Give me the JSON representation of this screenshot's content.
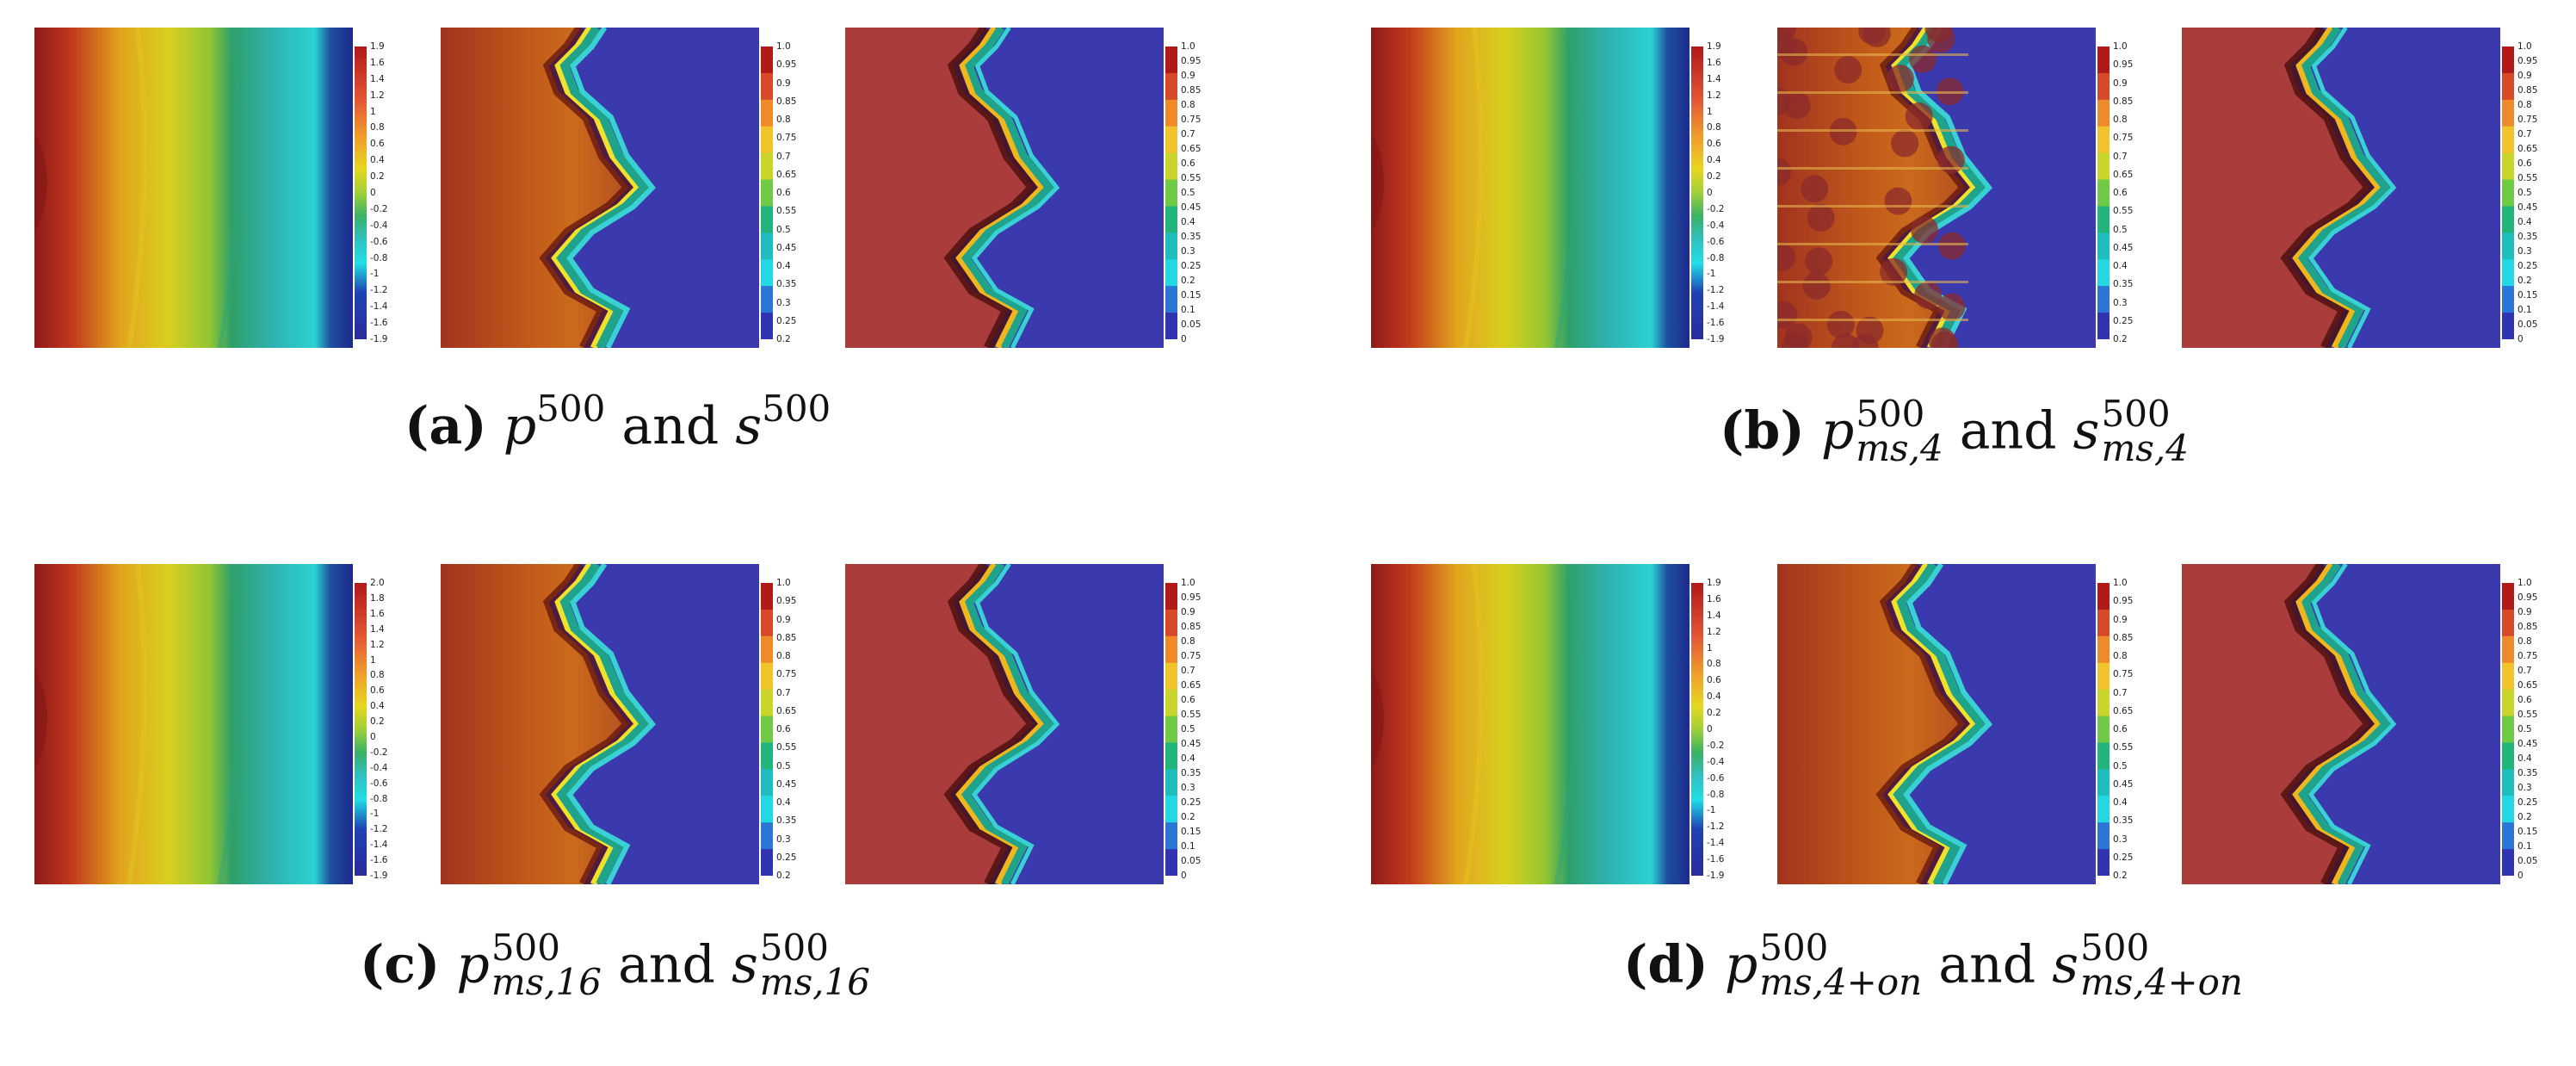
{
  "colors": {
    "pressure_map": [
      "#8f1a1a",
      "#c8451e",
      "#e1a51e",
      "#d9cf1e",
      "#92c633",
      "#2fa06a",
      "#2fb2b2",
      "#2bd2d2",
      "#1d2a8c"
    ],
    "saturation_map": [
      "#ad3f3c",
      "#a53624",
      "#b9520f",
      "#1e8f73",
      "#2a7bc4",
      "#3939b3"
    ],
    "field_blue": "#3a3aae",
    "field_red": "#aa3c3c"
  },
  "figure": {
    "panels": [
      {
        "id": "a",
        "caption": {
          "label": "(a)",
          "p": "p",
          "p_sup": "500",
          "p_sub": "",
          "joiner": "and",
          "s": "s",
          "s_sup": "500",
          "s_sub": ""
        },
        "colorbars": [
          [
            "1.9",
            "1.6",
            "1.4",
            "1.2",
            "1",
            "0.8",
            "0.6",
            "0.4",
            "0.2",
            "0",
            "-0.2",
            "-0.4",
            "-0.6",
            "-0.8",
            "-1",
            "-1.2",
            "-1.4",
            "-1.6",
            "-1.9"
          ],
          [
            "1.0",
            "0.95",
            "0.9",
            "0.85",
            "0.8",
            "0.75",
            "0.7",
            "0.65",
            "0.6",
            "0.55",
            "0.5",
            "0.45",
            "0.4",
            "0.35",
            "0.3",
            "0.25",
            "0.2"
          ],
          [
            "1.0",
            "0.95",
            "0.9",
            "0.85",
            "0.8",
            "0.75",
            "0.7",
            "0.65",
            "0.6",
            "0.55",
            "0.5",
            "0.45",
            "0.4",
            "0.35",
            "0.3",
            "0.25",
            "0.2",
            "0.15",
            "0.1",
            "0.05",
            "0"
          ]
        ]
      },
      {
        "id": "b",
        "caption": {
          "label": "(b)",
          "p": "p",
          "p_sup": "500",
          "p_sub": "ms,4",
          "joiner": "and",
          "s": "s",
          "s_sup": "500",
          "s_sub": "ms,4"
        },
        "colorbars": [
          [
            "1.9",
            "1.6",
            "1.4",
            "1.2",
            "1",
            "0.8",
            "0.6",
            "0.4",
            "0.2",
            "0",
            "-0.2",
            "-0.4",
            "-0.6",
            "-0.8",
            "-1",
            "-1.2",
            "-1.4",
            "-1.6",
            "-1.9"
          ],
          [
            "1.0",
            "0.95",
            "0.9",
            "0.85",
            "0.8",
            "0.75",
            "0.7",
            "0.65",
            "0.6",
            "0.55",
            "0.5",
            "0.45",
            "0.4",
            "0.35",
            "0.3",
            "0.25",
            "0.2"
          ],
          [
            "1.0",
            "0.95",
            "0.9",
            "0.85",
            "0.8",
            "0.75",
            "0.7",
            "0.65",
            "0.6",
            "0.55",
            "0.5",
            "0.45",
            "0.4",
            "0.35",
            "0.3",
            "0.25",
            "0.2",
            "0.15",
            "0.1",
            "0.05",
            "0"
          ]
        ]
      },
      {
        "id": "c",
        "caption": {
          "label": "(c)",
          "p": "p",
          "p_sup": "500",
          "p_sub": "ms,16",
          "joiner": "and",
          "s": "s",
          "s_sup": "500",
          "s_sub": "ms,16"
        },
        "colorbars": [
          [
            "2.0",
            "1.8",
            "1.6",
            "1.4",
            "1.2",
            "1",
            "0.8",
            "0.6",
            "0.4",
            "0.2",
            "0",
            "-0.2",
            "-0.4",
            "-0.6",
            "-0.8",
            "-1",
            "-1.2",
            "-1.4",
            "-1.6",
            "-1.9"
          ],
          [
            "1.0",
            "0.95",
            "0.9",
            "0.85",
            "0.8",
            "0.75",
            "0.7",
            "0.65",
            "0.6",
            "0.55",
            "0.5",
            "0.45",
            "0.4",
            "0.35",
            "0.3",
            "0.25",
            "0.2"
          ],
          [
            "1.0",
            "0.95",
            "0.9",
            "0.85",
            "0.8",
            "0.75",
            "0.7",
            "0.65",
            "0.6",
            "0.55",
            "0.5",
            "0.45",
            "0.4",
            "0.35",
            "0.3",
            "0.25",
            "0.2",
            "0.15",
            "0.1",
            "0.05",
            "0"
          ]
        ]
      },
      {
        "id": "d",
        "caption": {
          "label": "(d)",
          "p": "p",
          "p_sup": "500",
          "p_sub": "ms,4+on",
          "joiner": "and",
          "s": "s",
          "s_sup": "500",
          "s_sub": "ms,4+on"
        },
        "colorbars": [
          [
            "1.9",
            "1.6",
            "1.4",
            "1.2",
            "1",
            "0.8",
            "0.6",
            "0.4",
            "0.2",
            "0",
            "-0.2",
            "-0.4",
            "-0.6",
            "-0.8",
            "-1",
            "-1.2",
            "-1.4",
            "-1.6",
            "-1.9"
          ],
          [
            "1.0",
            "0.95",
            "0.9",
            "0.85",
            "0.8",
            "0.75",
            "0.7",
            "0.65",
            "0.6",
            "0.55",
            "0.5",
            "0.45",
            "0.4",
            "0.35",
            "0.3",
            "0.25",
            "0.2"
          ],
          [
            "1.0",
            "0.95",
            "0.9",
            "0.85",
            "0.8",
            "0.75",
            "0.7",
            "0.65",
            "0.6",
            "0.55",
            "0.5",
            "0.45",
            "0.4",
            "0.35",
            "0.3",
            "0.25",
            "0.2",
            "0.15",
            "0.1",
            "0.05",
            "0"
          ]
        ]
      }
    ]
  }
}
